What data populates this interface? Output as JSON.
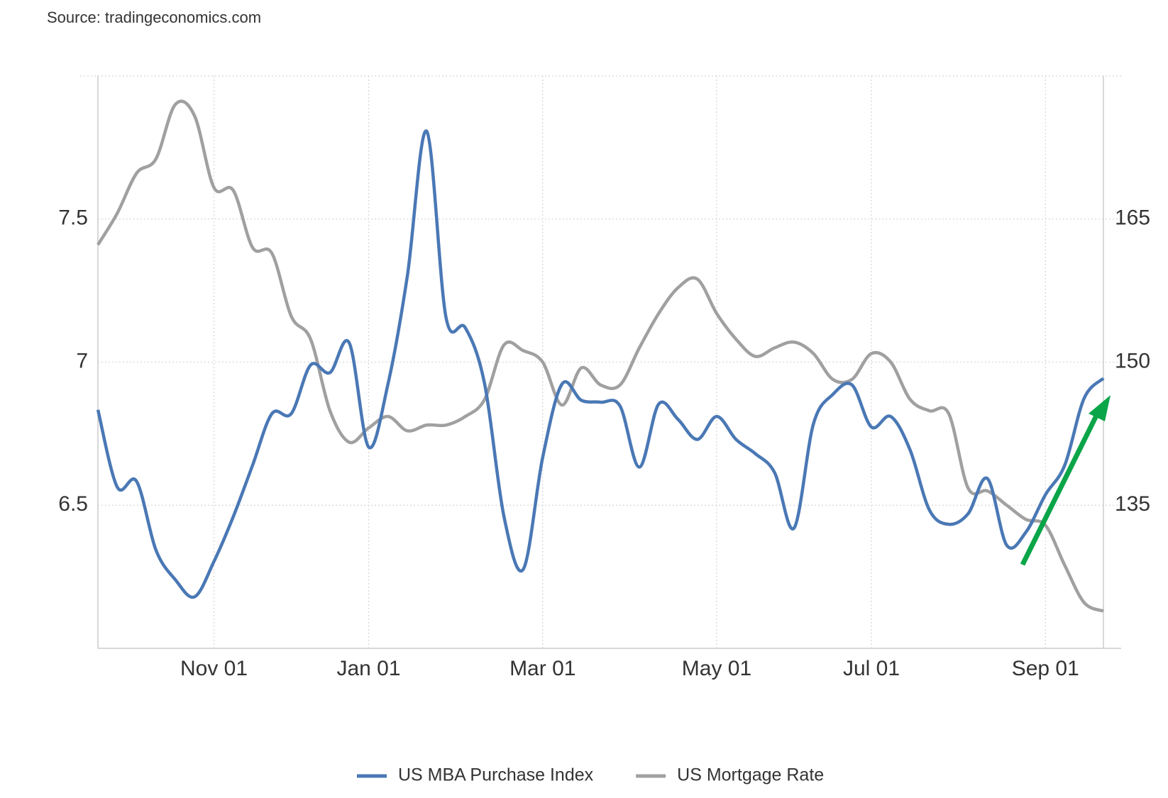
{
  "chart_data": {
    "type": "line",
    "source": "Source: tradingeconomics.com",
    "categories": [
      null,
      null,
      null,
      null,
      null,
      null,
      "Nov 01",
      null,
      null,
      null,
      null,
      null,
      null,
      null,
      "Jan 01",
      null,
      null,
      null,
      null,
      null,
      null,
      null,
      null,
      "Mar 01",
      null,
      null,
      null,
      null,
      null,
      null,
      null,
      null,
      "May 01",
      null,
      null,
      null,
      null,
      null,
      null,
      null,
      "Jul 01",
      null,
      null,
      null,
      null,
      null,
      null,
      null,
      null,
      "Sep 01",
      null,
      null,
      null
    ],
    "series": [
      {
        "name": "US MBA Purchase Index",
        "color": "#4a78b5",
        "axis": "y2",
        "values": [
          145.0,
          136.9,
          137.5,
          130.3,
          127.2,
          125.4,
          129.1,
          133.8,
          139.2,
          144.6,
          144.6,
          149.7,
          148.9,
          152.0,
          141.1,
          147.7,
          159.0,
          174.2,
          154.7,
          153.6,
          147.7,
          133.8,
          128.3,
          140.0,
          147.7,
          146.0,
          145.8,
          145.4,
          139.0,
          145.6,
          144.0,
          141.9,
          144.3,
          141.9,
          140.4,
          138.4,
          132.6,
          143.5,
          146.6,
          147.6,
          143.2,
          144.3,
          140.8,
          134.5,
          133.0,
          134.1,
          137.8,
          130.8,
          132.2,
          136.1,
          139.2,
          146.2,
          148.3
        ]
      },
      {
        "name": "US Mortgage Rate",
        "color": "#a0a0a0",
        "values": [
          7.41,
          7.52,
          7.66,
          7.71,
          7.9,
          7.86,
          7.61,
          7.6,
          7.4,
          7.38,
          7.16,
          7.08,
          6.83,
          6.72,
          6.77,
          6.81,
          6.76,
          6.78,
          6.78,
          6.81,
          6.87,
          7.06,
          7.04,
          7.0,
          6.85,
          6.98,
          6.92,
          6.92,
          7.05,
          7.17,
          7.26,
          7.29,
          7.17,
          7.08,
          7.02,
          7.05,
          7.07,
          7.03,
          6.94,
          6.94,
          7.03,
          7.0,
          6.87,
          6.83,
          6.82,
          6.56,
          6.55,
          6.5,
          6.45,
          6.43,
          6.29,
          6.16,
          6.13
        ]
      }
    ],
    "ylim": [
      6,
      8
    ],
    "yticks": [
      6.5,
      7,
      7.5
    ],
    "y2lim": [
      120,
      180
    ],
    "y2ticks": [
      135,
      150,
      165
    ],
    "grid": true,
    "legend": "bottom"
  }
}
